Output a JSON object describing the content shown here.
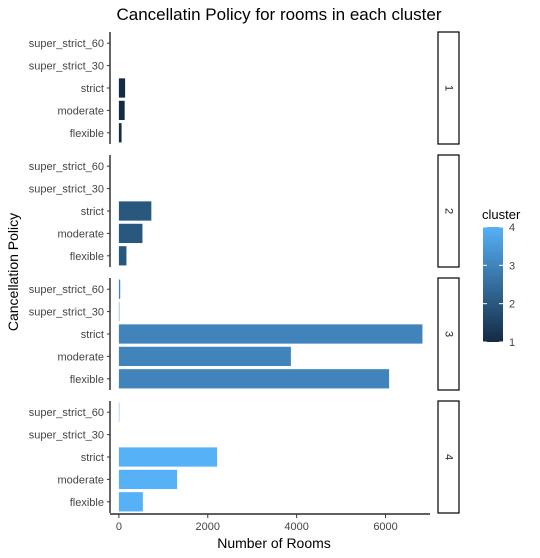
{
  "chart_data": {
    "type": "bar",
    "orientation": "horizontal",
    "title": "Cancellatin Policy for rooms in each cluster",
    "xlabel": "Number of Rooms",
    "ylabel": "Cancellation Policy",
    "categories": [
      "flexible",
      "moderate",
      "strict",
      "super_strict_30",
      "super_strict_60"
    ],
    "xlim": [
      -200,
      7000
    ],
    "xticks": [
      0,
      2000,
      4000,
      6000
    ],
    "xtick_labels": [
      "0",
      "2000",
      "4000",
      "6000"
    ],
    "grid": false,
    "facets": [
      {
        "label": "1",
        "cluster": 1,
        "values": [
          60,
          130,
          140,
          0,
          0
        ]
      },
      {
        "label": "2",
        "cluster": 2,
        "values": [
          170,
          530,
          730,
          0,
          0
        ]
      },
      {
        "label": "3",
        "cluster": 3,
        "values": [
          6080,
          3870,
          6830,
          10,
          30
        ]
      },
      {
        "label": "4",
        "cluster": 4,
        "values": [
          540,
          1310,
          2210,
          0,
          10
        ]
      }
    ],
    "legend": {
      "title": "cluster",
      "placement": "right",
      "type": "colorbar",
      "range": [
        1,
        4
      ],
      "ticks": [
        1,
        2,
        3,
        4
      ],
      "tick_labels": [
        "1",
        "2",
        "3",
        "4"
      ],
      "color_low": "#132b43",
      "color_high": "#56b1f7"
    }
  }
}
